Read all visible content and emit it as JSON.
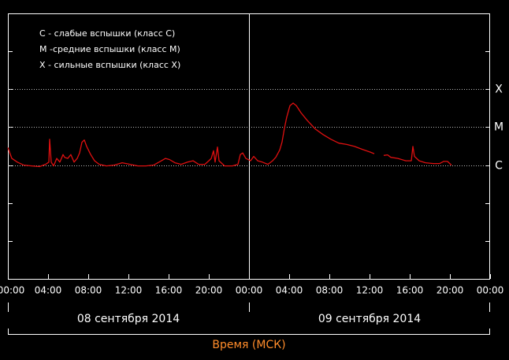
{
  "chart_data": {
    "type": "line",
    "log_scale": true,
    "background": "#000000",
    "annotations": [
      "C - слабые вспышки (класс C)",
      "M -средние вспышки (класс M)",
      "X - сильные вспышки (класс X)"
    ],
    "x_label": "Время (МСК)",
    "x_label_color": "#ff8c2a",
    "dates": [
      "08 сентября 2014",
      "09 сентября 2014"
    ],
    "xlim": [
      0,
      48
    ],
    "xticks": [
      {
        "value": 0,
        "label": "00:00"
      },
      {
        "value": 4,
        "label": "04:00"
      },
      {
        "value": 8,
        "label": "08:00"
      },
      {
        "value": 12,
        "label": "12:00"
      },
      {
        "value": 16,
        "label": "16:00"
      },
      {
        "value": 20,
        "label": "20:00"
      },
      {
        "value": 24,
        "label": "00:00"
      },
      {
        "value": 28,
        "label": "04:00"
      },
      {
        "value": 32,
        "label": "08:00"
      },
      {
        "value": 36,
        "label": "12:00"
      },
      {
        "value": 40,
        "label": "16:00"
      },
      {
        "value": 44,
        "label": "20:00"
      },
      {
        "value": 48,
        "label": "00:00"
      }
    ],
    "ylim": [
      1e-09,
      0.01
    ],
    "yticks": [
      {
        "value": 0.0001,
        "label": "X"
      },
      {
        "value": 1e-05,
        "label": "M"
      },
      {
        "value": 1e-06,
        "label": "C"
      }
    ],
    "minor_yticks": [
      1e-09,
      1e-08,
      1e-07,
      1e-06,
      1e-05,
      0.0001,
      0.001,
      0.01
    ],
    "grid": true,
    "x": [
      0,
      0.39,
      0.94,
      1.57,
      2.35,
      3.14,
      3.76,
      4.08,
      4.16,
      4.31,
      4.55,
      4.86,
      5.18,
      5.49,
      5.65,
      5.96,
      6.27,
      6.59,
      6.9,
      7.14,
      7.37,
      7.61,
      7.84,
      8.24,
      8.63,
      9.1,
      9.8,
      10.59,
      11.37,
      12.16,
      12.94,
      13.73,
      14.51,
      15.29,
      15.69,
      16.08,
      16.63,
      17.25,
      17.88,
      18.43,
      18.98,
      19.61,
      20,
      20.24,
      20.47,
      20.63,
      20.86,
      21.02,
      21.57,
      22.35,
      22.9,
      23.14,
      23.37,
      23.69,
      24.16,
      24.47,
      24.86,
      25.33,
      25.88,
      26.35,
      26.67,
      27.06,
      27.29,
      27.53,
      27.76,
      28.08,
      28.39,
      28.71,
      29.18,
      29.8,
      30.59,
      31.37,
      32.16,
      32.94,
      33.73,
      34.51,
      35.29,
      36.08,
      36.47,
      36.8,
      37.41,
      37.8,
      38.12,
      38.82,
      39.61,
      40.16,
      40.31,
      40.47,
      40.94,
      41.57,
      42.35,
      42.98,
      43.37,
      43.76,
      44.16
    ],
    "series": [
      {
        "color": "#e01010",
        "values": [
          2.9e-06,
          1.5e-06,
          1.2e-06,
          1e-06,
          9.5e-07,
          9.1e-07,
          1.05e-06,
          1.2e-06,
          4.8e-06,
          1.2e-06,
          9.5e-07,
          1.5e-06,
          1.2e-06,
          1.9e-06,
          1.6e-06,
          1.5e-06,
          1.9e-06,
          1.2e-06,
          1.5e-06,
          2.1e-06,
          4e-06,
          4.6e-06,
          3.1e-06,
          1.9e-06,
          1.3e-06,
          1.05e-06,
          9.5e-07,
          1e-06,
          1.15e-06,
          1.05e-06,
          9.5e-07,
          9.5e-07,
          1e-06,
          1.3e-06,
          1.5e-06,
          1.4e-06,
          1.15e-06,
          1.05e-06,
          1.2e-06,
          1.3e-06,
          1.05e-06,
          1.05e-06,
          1.3e-06,
          1.5e-06,
          2.4e-06,
          1.2e-06,
          3e-06,
          1.3e-06,
          9.5e-07,
          9.5e-07,
          1.05e-06,
          1.9e-06,
          2.1e-06,
          1.5e-06,
          1.3e-06,
          1.7e-06,
          1.3e-06,
          1.2e-06,
          1.05e-06,
          1.3e-06,
          1.6e-06,
          2.5e-06,
          4e-06,
          9.4e-06,
          1.83e-05,
          3.7e-05,
          4.3e-05,
          3.7e-05,
          2.4e-05,
          1.51e-05,
          9e-06,
          6.4e-06,
          4.8e-06,
          3.8e-06,
          3.5e-06,
          3.1e-06,
          2.6e-06,
          2.2e-06,
          2e-06,
          null,
          1.8e-06,
          1.86e-06,
          1.6e-06,
          1.5e-06,
          1.3e-06,
          1.3e-06,
          3.1e-06,
          1.7e-06,
          1.3e-06,
          1.15e-06,
          1.1e-06,
          1.1e-06,
          1.25e-06,
          1.25e-06,
          1e-06
        ]
      }
    ]
  }
}
